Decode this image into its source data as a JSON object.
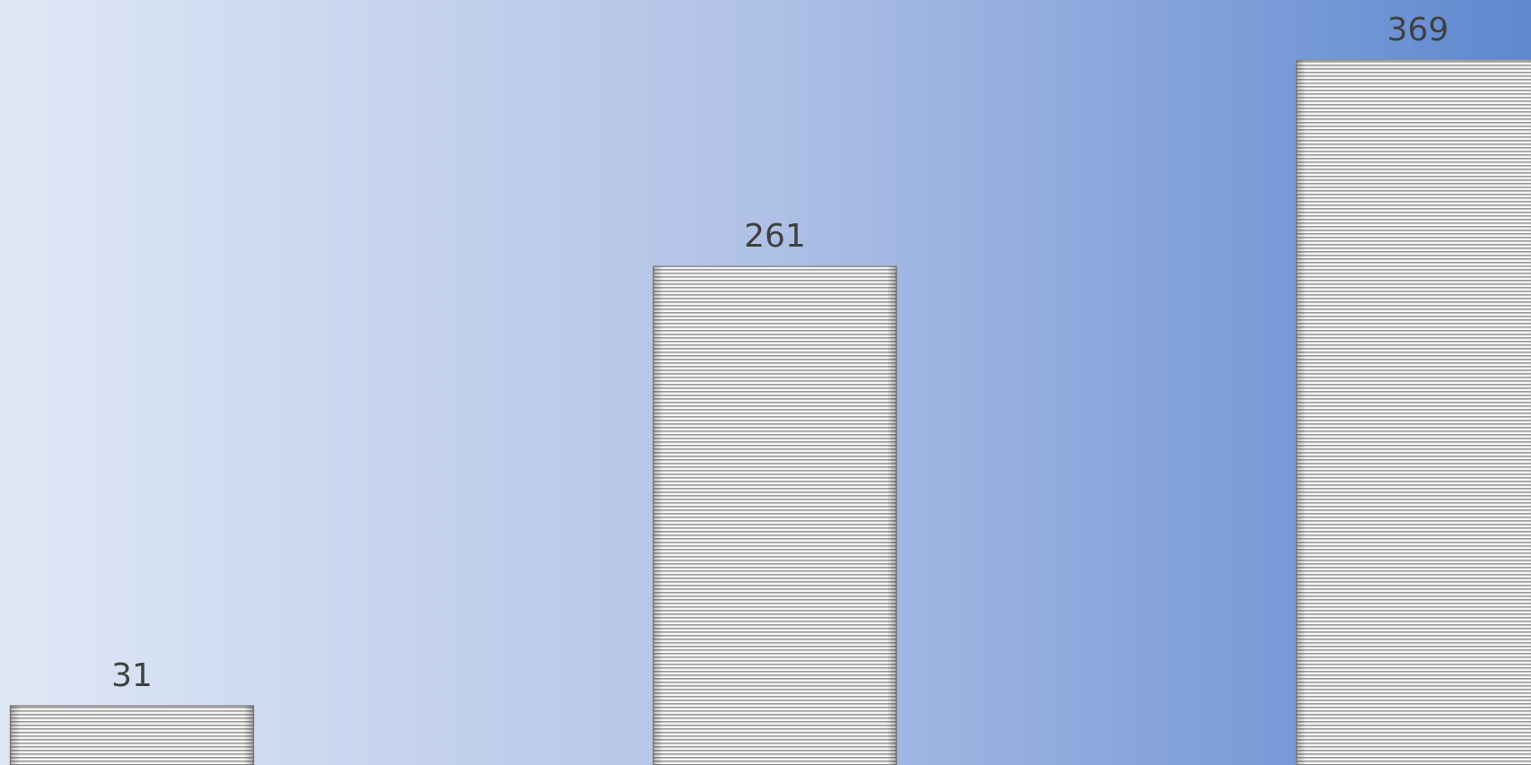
{
  "chart_data": {
    "type": "bar",
    "values": [
      31,
      261,
      369
    ]
  }
}
